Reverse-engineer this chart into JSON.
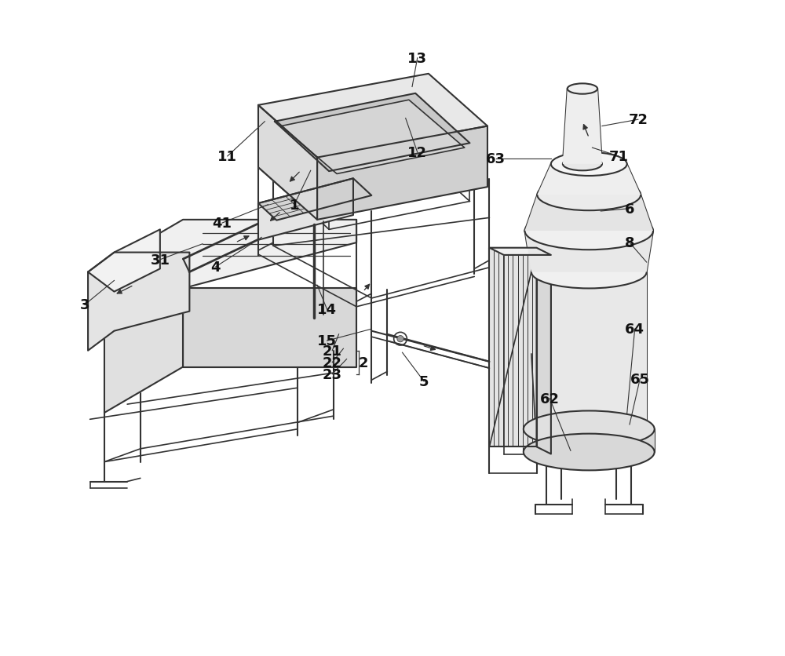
{
  "bg_color": "#ffffff",
  "line_color": "#333333",
  "line_width": 1.2,
  "label_fontsize": 13,
  "label_fontweight": "bold",
  "figsize": [
    10.0,
    8.37
  ],
  "dpi": 100
}
